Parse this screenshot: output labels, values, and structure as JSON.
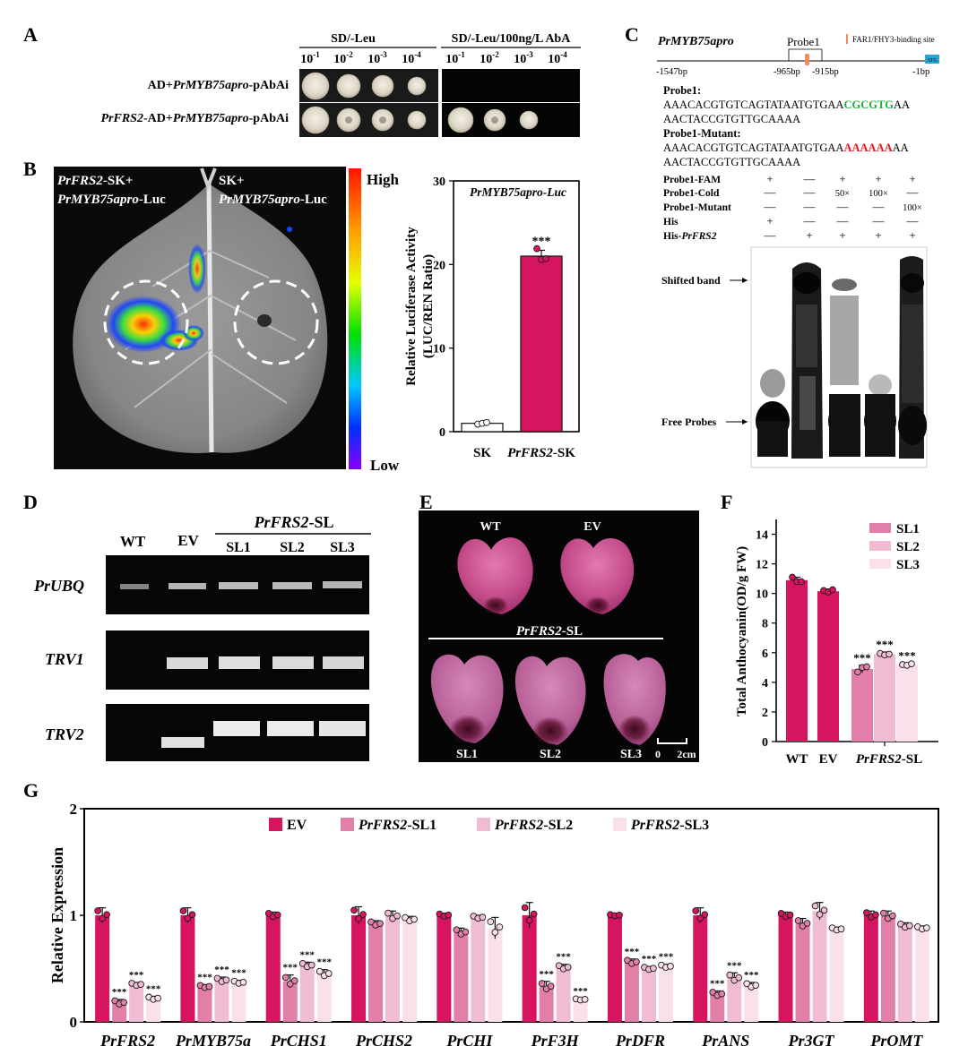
{
  "panel_letters": {
    "a": "A",
    "b": "B",
    "c": "C",
    "d": "D",
    "e": "E",
    "f": "F",
    "g": "G"
  },
  "panel_a": {
    "media": [
      "SD/-Leu",
      "SD/-Leu/100ng/L AbA"
    ],
    "dilutions": [
      "10",
      "10",
      "10",
      "10",
      "10",
      "10",
      "10",
      "10"
    ],
    "dilution_exponents": [
      "-1",
      "-2",
      "-3",
      "-4",
      "-1",
      "-2",
      "-3",
      "-4"
    ],
    "row1": {
      "pre": "AD+",
      "gene": "PrMYB75apro",
      "post": "-pAbAi"
    },
    "row2": {
      "gene1": "PrFRS2",
      "mid": "-AD+",
      "gene2": "PrMYB75apro",
      "post": "-pAbAi"
    }
  },
  "panel_b": {
    "img_label1_gene": "PrFRS2",
    "img_label1_suffix": "-SK+",
    "img_label1_line2_gene": "PrMYB75apro",
    "img_label1_line2_suffix": "-Luc",
    "img_label2_line1": "SK+",
    "img_label2_line2_gene": "PrMYB75apro",
    "img_label2_line2_suffix": "-Luc",
    "scale_high": "High",
    "scale_low": "Low"
  },
  "panel_c": {
    "promoter_title": "PrMYB75apro",
    "probe_label": "Probe1",
    "legend_site": "FAR1/FHY3-binding site",
    "positions": [
      "-1547bp",
      "-965bp",
      "-915bp",
      "-1bp"
    ],
    "atg": "ATG",
    "probe1_heading": "Probe1:",
    "probe1_seq_a": "AAACACGTGTCAGTATAATGTGAA",
    "probe1_seq_highlight": "CGCGTG",
    "probe1_seq_b": "AA",
    "probe1_line2": "AACTACCGTGTTGCAAAA",
    "mutant_heading": "Probe1-Mutant:",
    "mutant_seq_a": "AAACACGTGTCAGTATAATGTGAA",
    "mutant_seq_highlight": "AAAAAA",
    "mutant_seq_b": "AA",
    "mutant_line2": "AACTACCGTGTTGCAAAA",
    "table_rows": [
      {
        "label": "Probe1-FAM",
        "cells": [
          "+",
          "—",
          "+",
          "+",
          "+"
        ]
      },
      {
        "label": "Probe1-Cold",
        "cells": [
          "—",
          "—",
          "50×",
          "100×",
          "—"
        ]
      },
      {
        "label": "Probe1-Mutant",
        "cells": [
          "—",
          "—",
          "—",
          "—",
          "100×"
        ]
      },
      {
        "label": "His",
        "cells": [
          "+",
          "—",
          "—",
          "—",
          "—"
        ]
      },
      {
        "label": "His-",
        "label_gene": "PrFRS2",
        "cells": [
          "—",
          "+",
          "+",
          "+",
          "+"
        ]
      }
    ],
    "shifted_band": "Shifted band",
    "free_probes": "Free Probes"
  },
  "panel_d": {
    "lanes": [
      "WT",
      "EV"
    ],
    "group_gene": "PrFRS2",
    "group_suffix": "-SL",
    "sublanes": [
      "SL1",
      "SL2",
      "SL3"
    ],
    "rows": [
      "PrUBQ",
      "TRV1",
      "TRV2"
    ]
  },
  "panel_e": {
    "top_labels": [
      "WT",
      "EV"
    ],
    "group_gene": "PrFRS2",
    "group_suffix": "-SL",
    "bottom_labels": [
      "SL1",
      "SL2",
      "SL3"
    ],
    "scale_left": "0",
    "scale_right": "2cm"
  },
  "chart_data": [
    {
      "id": "B",
      "type": "bar",
      "title": "PrMYB75apro-Luc",
      "ylabel": "Relative Luciferase Activity (LUC/REN Ratio)",
      "ylabel_line1": "Relative Luciferase Activity",
      "ylabel_line2": "(LUC/REN Ratio)",
      "categories": [
        "SK",
        "PrFRS2-SK"
      ],
      "category_parts": [
        {
          "gene": "",
          "text": "SK"
        },
        {
          "gene": "PrFRS2",
          "text": "-SK"
        }
      ],
      "values": [
        1.0,
        21.0
      ],
      "errors": [
        0.1,
        0.7
      ],
      "points": [
        [
          0.9,
          1.0,
          1.1
        ],
        [
          21.9,
          20.6,
          20.7
        ]
      ],
      "significance": [
        "",
        "***"
      ],
      "ylim": [
        0,
        30
      ],
      "yticks": [
        0,
        10,
        20,
        30
      ],
      "colors": [
        "#ffffff",
        "#d6145f"
      ]
    },
    {
      "id": "F",
      "type": "bar",
      "ylabel": "Total Anthocyanin(OD/g FW)",
      "categories": [
        "WT",
        "EV",
        "SL1",
        "SL2",
        "SL3"
      ],
      "xlabels": [
        "WT",
        "EV"
      ],
      "group_gene": "PrFRS2",
      "group_suffix": "-SL",
      "values": [
        10.9,
        10.15,
        4.9,
        5.9,
        5.2
      ],
      "errors": [
        0.2,
        0.15,
        0.25,
        0.15,
        0.1
      ],
      "points": [
        [
          11.1,
          10.8,
          10.8
        ],
        [
          10.2,
          10.1,
          10.25
        ],
        [
          4.7,
          5.0,
          5.05
        ],
        [
          5.95,
          5.85,
          5.9
        ],
        [
          5.2,
          5.15,
          5.25
        ]
      ],
      "significance": [
        "",
        "",
        "***",
        "***",
        "***"
      ],
      "legend": [
        "SL1",
        "SL2",
        "SL3"
      ],
      "ylim": [
        0,
        15
      ],
      "yticks": [
        0,
        2,
        4,
        6,
        8,
        10,
        12,
        14
      ],
      "colors": [
        "#d6145f",
        "#d6145f",
        "#e27fa9",
        "#f0bcd3",
        "#f9e0eb"
      ]
    },
    {
      "id": "G",
      "type": "bar",
      "ylabel": "Relative Expression",
      "categories": [
        "PrFRS2",
        "PrMYB75a",
        "PrCHS1",
        "PrCHS2",
        "PrCHI",
        "PrF3H",
        "PrDFR",
        "PrANS",
        "Pr3GT",
        "PrOMT"
      ],
      "series": [
        {
          "name": "EV",
          "legend_gene": "",
          "legend_text": "EV",
          "values": [
            1.0,
            1.0,
            1.0,
            1.0,
            1.0,
            1.0,
            1.0,
            1.0,
            1.0,
            1.0
          ],
          "errors": [
            0.07,
            0.07,
            0.03,
            0.08,
            0.02,
            0.12,
            0.01,
            0.07,
            0.03,
            0.04
          ],
          "significance": [
            "",
            "",
            "",
            "",
            "",
            "",
            "",
            "",
            "",
            ""
          ],
          "color": "#d6145f"
        },
        {
          "name": "PrFRS2-SL1",
          "legend_gene": "PrFRS2",
          "legend_text": "-SL1",
          "values": [
            0.18,
            0.33,
            0.38,
            0.92,
            0.84,
            0.33,
            0.56,
            0.26,
            0.92,
            0.99
          ],
          "errors": [
            0.03,
            0.02,
            0.06,
            0.03,
            0.04,
            0.05,
            0.03,
            0.03,
            0.05,
            0.05
          ],
          "significance": [
            "***",
            "***",
            "***",
            "",
            "",
            "***",
            "***",
            "***",
            "",
            ""
          ],
          "color": "#e27fa9"
        },
        {
          "name": "PrFRS2-SL2",
          "legend_gene": "PrFRS2",
          "legend_text": "-SL2",
          "values": [
            0.35,
            0.39,
            0.53,
            0.99,
            0.98,
            0.51,
            0.5,
            0.41,
            1.04,
            0.9
          ],
          "errors": [
            0.02,
            0.03,
            0.03,
            0.05,
            0.02,
            0.03,
            0.02,
            0.05,
            0.08,
            0.03
          ],
          "significance": [
            "***",
            "***",
            "***",
            "",
            "",
            "***",
            "***",
            "***",
            "",
            ""
          ],
          "color": "#f0bcd3"
        },
        {
          "name": "PrFRS2-SL3",
          "legend_gene": "PrFRS2",
          "legend_text": "-SL3",
          "values": [
            0.22,
            0.37,
            0.45,
            0.96,
            0.88,
            0.21,
            0.52,
            0.34,
            0.87,
            0.88
          ],
          "errors": [
            0.02,
            0.02,
            0.04,
            0.03,
            0.1,
            0.01,
            0.02,
            0.03,
            0.02,
            0.02
          ],
          "significance": [
            "***",
            "***",
            "***",
            "",
            "",
            "***",
            "***",
            "***",
            "",
            ""
          ],
          "color": "#f9e0eb"
        }
      ],
      "ylim": [
        0,
        2
      ],
      "yticks": [
        0,
        1,
        2
      ]
    }
  ]
}
